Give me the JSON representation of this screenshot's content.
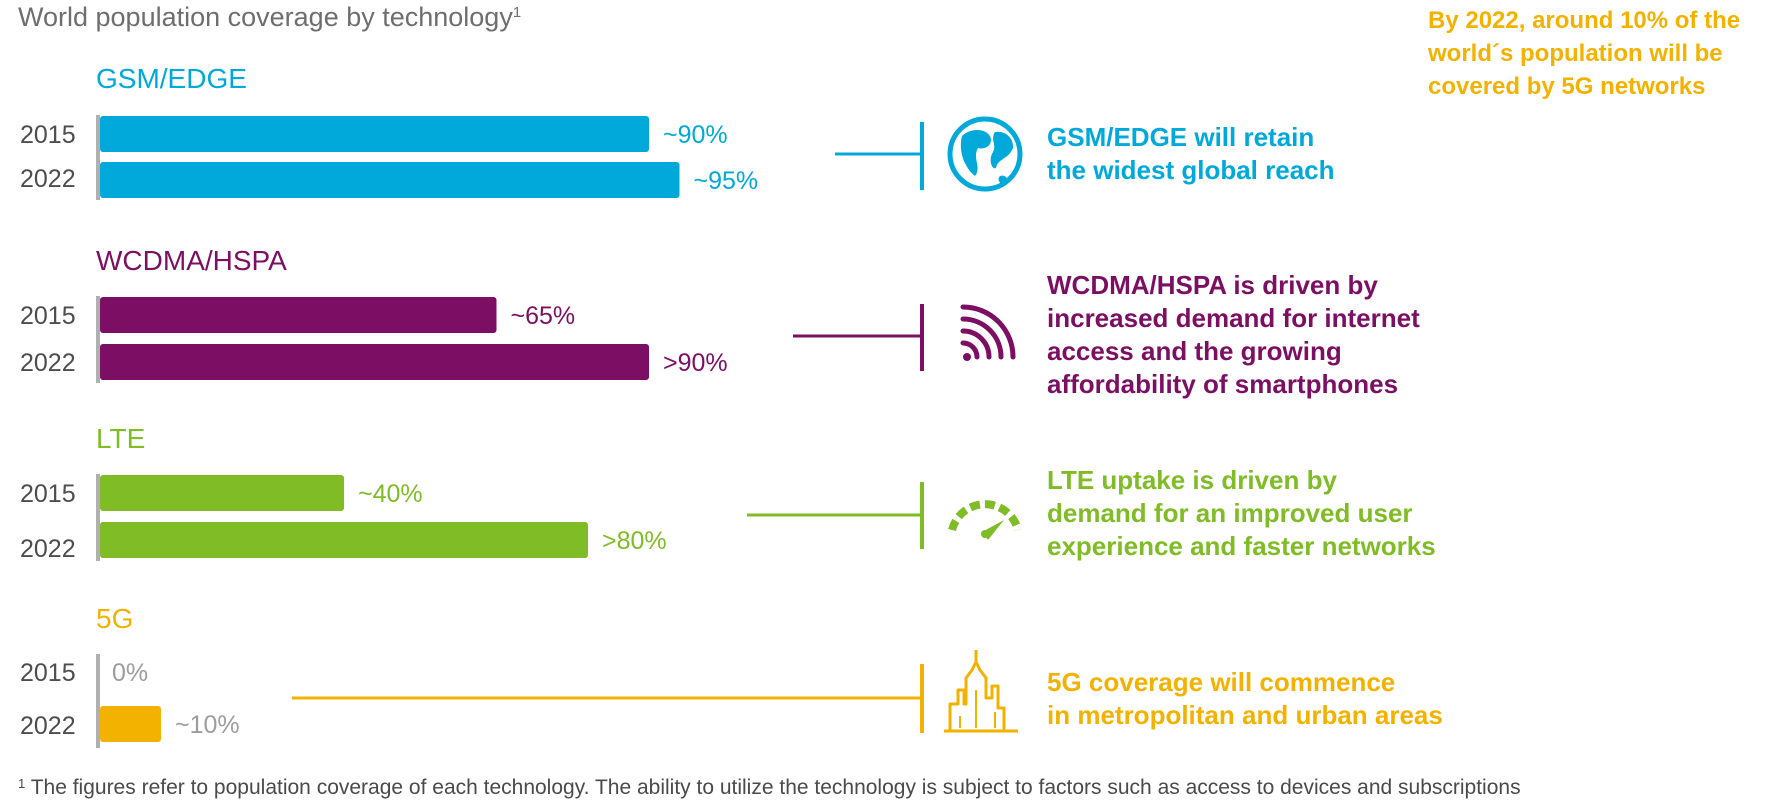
{
  "title": "World population coverage by technology",
  "title_sup": "1",
  "callout": "By 2022, around 10% of the\nworld´s population will be\ncovered by 5G networks",
  "footnote_sup": "1",
  "footnote": " The figures refer to population coverage of each technology. The ability to utilize the technology is subject to factors such as access to devices and subscriptions",
  "colors": {
    "gsm": "#00a9d9",
    "wcdma": "#7c0f63",
    "lte": "#7fbc26",
    "g5": "#f3b200",
    "axis": "#b0b0b0",
    "zero_label": "#9d9d9d"
  },
  "descriptions": [
    {
      "text": "GSM/EDGE will retain\nthe widest global reach"
    },
    {
      "text": "WCDMA/HSPA is driven by\nincreased demand for internet\naccess and the growing\naffordability of smartphones"
    },
    {
      "text": "LTE uptake is driven by\ndemand for an improved user\nexperience and faster networks"
    },
    {
      "text": "5G coverage will commence\nin metropolitan and urban areas"
    }
  ],
  "chart_data": {
    "type": "bar",
    "orientation": "horizontal",
    "title": "World population coverage by technology",
    "xlim": [
      0,
      100
    ],
    "unit": "% of world population",
    "groups": [
      {
        "name": "GSM/EDGE",
        "icon": "globe-icon",
        "bars": [
          {
            "year": "2015",
            "value": 90,
            "label": "~90%"
          },
          {
            "year": "2022",
            "value": 95,
            "label": "~95%"
          }
        ]
      },
      {
        "name": "WCDMA/HSPA",
        "icon": "wifi-signal-icon",
        "bars": [
          {
            "year": "2015",
            "value": 65,
            "label": "~65%"
          },
          {
            "year": "2022",
            "value": 90,
            "label": ">90%"
          }
        ]
      },
      {
        "name": "LTE",
        "icon": "speedometer-icon",
        "bars": [
          {
            "year": "2015",
            "value": 40,
            "label": "~40%"
          },
          {
            "year": "2022",
            "value": 80,
            "label": ">80%"
          }
        ]
      },
      {
        "name": "5G",
        "icon": "city-skyline-icon",
        "bars": [
          {
            "year": "2015",
            "value": 0,
            "label": "0%"
          },
          {
            "year": "2022",
            "value": 10,
            "label": "~10%"
          }
        ]
      }
    ]
  }
}
